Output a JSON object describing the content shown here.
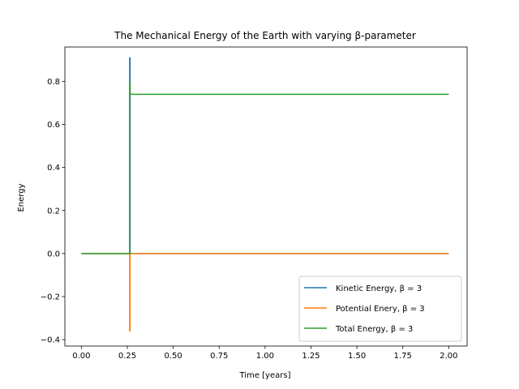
{
  "chart_data": {
    "type": "line",
    "title": "The Mechanical Energy of the Earth with varying β-parameter",
    "xlabel": "Time [years]",
    "ylabel": "Energy",
    "xlim": [
      -0.09,
      2.1
    ],
    "ylim": [
      -0.43,
      0.96
    ],
    "x_ticks": [
      0.0,
      0.25,
      0.5,
      0.75,
      1.0,
      1.25,
      1.5,
      1.75,
      2.0
    ],
    "x_tick_labels": [
      "0.00",
      "0.25",
      "0.50",
      "0.75",
      "1.00",
      "1.25",
      "1.50",
      "1.75",
      "2.00"
    ],
    "y_ticks": [
      -0.4,
      -0.2,
      0.0,
      0.2,
      0.4,
      0.6,
      0.8
    ],
    "y_tick_labels": [
      "−0.4",
      "−0.2",
      "0.0",
      "0.2",
      "0.4",
      "0.6",
      "0.8"
    ],
    "legend_position": "lower-right",
    "grid": false,
    "series": [
      {
        "name": "Kinetic Energy, β = 3",
        "color": "#1f77b4",
        "x": [
          0.0,
          0.263,
          0.263,
          0.265,
          0.265,
          2.0
        ],
        "y": [
          0.0,
          0.0,
          0.91,
          0.91,
          0.0,
          0.0
        ]
      },
      {
        "name": "Potential Enery, β = 3",
        "color": "#ff7f0e",
        "x": [
          0.0,
          0.263,
          0.263,
          0.265,
          0.265,
          2.0
        ],
        "y": [
          0.0,
          0.0,
          -0.36,
          -0.36,
          0.0,
          0.0
        ]
      },
      {
        "name": "Total Energy, β = 3",
        "color": "#2ca02c",
        "x": [
          0.0,
          0.263,
          0.263,
          0.265,
          0.265,
          0.27,
          2.0
        ],
        "y": [
          0.0,
          0.0,
          0.8,
          0.8,
          0.74,
          0.74,
          0.74
        ]
      }
    ]
  }
}
